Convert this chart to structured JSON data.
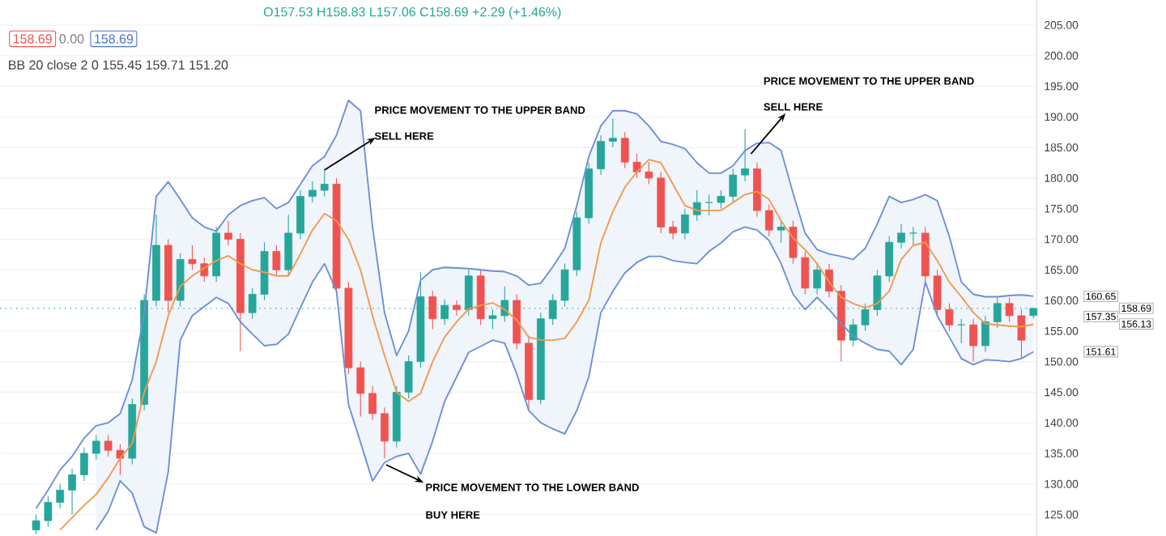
{
  "chart_data": {
    "type": "candlestick",
    "categories": [
      null,
      null,
      null,
      null,
      null,
      null,
      null,
      null,
      null,
      null,
      null,
      null,
      null,
      null,
      null,
      null,
      null,
      null,
      null,
      null,
      null,
      null,
      null,
      null,
      null,
      null,
      null,
      null,
      null,
      null,
      null,
      null,
      null,
      null,
      null,
      null,
      null,
      null,
      null,
      null,
      null,
      null,
      null,
      null,
      null,
      null,
      null,
      null,
      null,
      null,
      null,
      null,
      null,
      null,
      null,
      null,
      null,
      null,
      null,
      null,
      null,
      null,
      null,
      null,
      null,
      null,
      null,
      null,
      null,
      null,
      null,
      null,
      null,
      null,
      null,
      null,
      null,
      null,
      null,
      null,
      null,
      null,
      null,
      null
    ],
    "ohlc": [
      [
        122.5,
        125,
        121.8,
        124
      ],
      [
        124,
        128,
        123,
        127
      ],
      [
        127,
        130,
        126,
        129
      ],
      [
        129,
        132.5,
        125,
        131.5
      ],
      [
        131.5,
        136,
        130.5,
        135
      ],
      [
        135,
        138,
        134,
        137
      ],
      [
        137,
        138,
        134.5,
        135.5
      ],
      [
        135.5,
        136.5,
        131.5,
        134.2
      ],
      [
        134.2,
        144,
        133.2,
        143
      ],
      [
        143,
        161,
        142,
        160
      ],
      [
        160,
        174,
        159,
        169
      ],
      [
        169,
        170,
        158,
        160
      ],
      [
        160,
        167.7,
        159,
        166.7
      ],
      [
        166.7,
        169,
        165,
        166
      ],
      [
        166,
        167,
        163,
        164
      ],
      [
        164,
        172,
        163,
        171
      ],
      [
        171,
        173,
        169,
        170
      ],
      [
        170,
        171,
        151.7,
        158
      ],
      [
        158,
        162,
        157,
        161
      ],
      [
        161,
        169.5,
        160,
        168
      ],
      [
        168,
        169,
        164,
        165
      ],
      [
        165,
        174,
        164,
        171
      ],
      [
        171,
        178,
        170,
        177
      ],
      [
        177,
        179.5,
        176,
        178
      ],
      [
        178,
        181.3,
        177,
        179
      ],
      [
        179,
        180,
        161,
        162
      ],
      [
        162,
        163,
        148,
        149
      ],
      [
        149,
        150,
        141,
        144.8
      ],
      [
        144.8,
        146,
        140.5,
        141.5
      ],
      [
        141.5,
        142.5,
        134.2,
        137
      ],
      [
        137,
        146,
        136,
        145
      ],
      [
        145,
        151,
        144,
        150
      ],
      [
        150,
        164.6,
        149,
        160.6
      ],
      [
        160.6,
        161.6,
        155.3,
        157
      ],
      [
        157,
        160.2,
        156,
        159.2
      ],
      [
        159.2,
        160,
        157.5,
        158.5
      ],
      [
        158.5,
        165,
        157.5,
        164
      ],
      [
        164,
        165,
        156,
        157
      ],
      [
        157,
        158.5,
        155.3,
        157.5
      ],
      [
        157.5,
        162.3,
        156.5,
        160
      ],
      [
        160,
        161,
        152,
        153
      ],
      [
        153,
        154,
        142,
        143.8
      ],
      [
        143.8,
        158,
        143,
        157
      ],
      [
        157,
        161,
        156,
        160
      ],
      [
        160,
        166,
        159,
        165
      ],
      [
        165,
        174.5,
        164,
        173.5
      ],
      [
        173.5,
        182.5,
        172.5,
        181.5
      ],
      [
        181.5,
        187,
        180.5,
        186
      ],
      [
        186,
        189.7,
        185,
        186.5
      ],
      [
        186.5,
        187.5,
        181.6,
        182.6
      ],
      [
        182.6,
        184,
        180,
        181
      ],
      [
        181,
        182.6,
        179,
        180
      ],
      [
        180,
        181,
        171,
        172
      ],
      [
        172,
        173,
        170,
        171
      ],
      [
        171,
        175,
        170,
        174
      ],
      [
        174,
        178,
        173,
        176
      ],
      [
        176,
        177.3,
        173.9,
        176
      ],
      [
        176,
        178,
        175,
        177
      ],
      [
        177,
        181.5,
        176,
        180.5
      ],
      [
        180.5,
        188,
        179.5,
        181.5
      ],
      [
        181.5,
        182.5,
        173.7,
        174.7
      ],
      [
        174.7,
        175.7,
        170.5,
        171.5
      ],
      [
        171.5,
        173,
        169.4,
        172
      ],
      [
        172,
        173,
        166,
        167
      ],
      [
        167,
        168,
        161,
        162
      ],
      [
        162,
        166,
        161,
        165
      ],
      [
        165,
        166,
        160.5,
        161.5
      ],
      [
        161.5,
        162.5,
        150,
        153.5
      ],
      [
        153.5,
        157,
        152.5,
        156
      ],
      [
        156,
        159.5,
        155,
        158.5
      ],
      [
        158.5,
        165,
        157.5,
        164
      ],
      [
        164,
        170.5,
        163,
        169.5
      ],
      [
        169.5,
        172.5,
        168.5,
        171
      ],
      [
        171,
        172,
        169,
        171
      ],
      [
        171,
        172,
        163,
        164
      ],
      [
        164,
        165,
        157.5,
        158.5
      ],
      [
        158.5,
        159.5,
        155,
        156
      ],
      [
        156,
        157,
        153,
        156
      ],
      [
        156,
        157,
        150,
        152.6
      ],
      [
        152.6,
        157.5,
        151.6,
        156.5
      ],
      [
        156.5,
        160.5,
        155.5,
        159.5
      ],
      [
        159.5,
        160.5,
        156.5,
        157.5
      ],
      [
        157.5,
        158.5,
        150.5,
        153.5
      ],
      [
        157.53,
        158.83,
        157.06,
        158.69
      ]
    ],
    "colors": [
      "#26a69a",
      "#26a69a",
      "#26a69a",
      "#26a69a",
      "#26a69a",
      "#26a69a",
      "#ef5350",
      "#ef5350",
      "#26a69a",
      "#26a69a",
      "#26a69a",
      "#ef5350",
      "#26a69a",
      "#ef5350",
      "#ef5350",
      "#26a69a",
      "#ef5350",
      "#ef5350",
      "#26a69a",
      "#26a69a",
      "#ef5350",
      "#26a69a",
      "#26a69a",
      "#26a69a",
      "#26a69a",
      "#ef5350",
      "#ef5350",
      "#ef5350",
      "#ef5350",
      "#ef5350",
      "#26a69a",
      "#26a69a",
      "#26a69a",
      "#ef5350",
      "#26a69a",
      "#ef5350",
      "#26a69a",
      "#ef5350",
      "#26a69a",
      "#26a69a",
      "#ef5350",
      "#ef5350",
      "#26a69a",
      "#26a69a",
      "#26a69a",
      "#26a69a",
      "#26a69a",
      "#26a69a",
      "#26a69a",
      "#ef5350",
      "#ef5350",
      "#ef5350",
      "#ef5350",
      "#ef5350",
      "#26a69a",
      "#26a69a",
      "#26a69a",
      "#26a69a",
      "#26a69a",
      "#26a69a",
      "#ef5350",
      "#ef5350",
      "#26a69a",
      "#ef5350",
      "#ef5350",
      "#26a69a",
      "#ef5350",
      "#ef5350",
      "#26a69a",
      "#26a69a",
      "#26a69a",
      "#26a69a",
      "#26a69a",
      "#26a69a",
      "#ef5350",
      "#ef5350",
      "#ef5350",
      "#26a69a",
      "#ef5350",
      "#26a69a",
      "#26a69a",
      "#ef5350",
      "#ef5350",
      "#26a69a"
    ],
    "series": [
      {
        "type": "line",
        "color": "#6b8fd6",
        "values": [
          126,
          129,
          132.3,
          134.5,
          137.5,
          139.5,
          140,
          141.5,
          147,
          158,
          177,
          179.4,
          176.5,
          173.5,
          172,
          171.3,
          174,
          175.5,
          176.3,
          176.8,
          175,
          176,
          179,
          182,
          183.5,
          187,
          192.7,
          191,
          172,
          158,
          151,
          155,
          163.3,
          165,
          165.4,
          165.3,
          165.2,
          165,
          164.8,
          164.7,
          164,
          162.5,
          162.8,
          165.5,
          168.5,
          175.5,
          183.5,
          188.5,
          191,
          191,
          190.5,
          188.5,
          186,
          185.5,
          184.8,
          182.5,
          180.8,
          180.8,
          182,
          184.5,
          185.7,
          185.8,
          184.5,
          177.5,
          171,
          168.3,
          167.6,
          167.2,
          166.7,
          168.5,
          172.5,
          177,
          176,
          176.5,
          177.3,
          176.3,
          170.5,
          163,
          161,
          160.6,
          160.6,
          160.8,
          160.9,
          160.7
        ]
      },
      {
        "type": "line",
        "color": "#f2994a",
        "lower": [
          null,
          null,
          null,
          null,
          null,
          122.5,
          125.5,
          130.5,
          128.5,
          123,
          122,
          132,
          153.5,
          157.5,
          159,
          160.5,
          159.5,
          156.5,
          154.5,
          152.6,
          152.8,
          154.5,
          158.8,
          163,
          166,
          161.5,
          143,
          136.8,
          130.5,
          133.5,
          134.5,
          135,
          131.6,
          137,
          143.5,
          147.5,
          151.5,
          152.5,
          153.5,
          153,
          148,
          142,
          140,
          139,
          138.2,
          142,
          147.5,
          158,
          161.5,
          164.5,
          166.2,
          167.2,
          167.2,
          166.5,
          166.2,
          166,
          168,
          169.4,
          171.2,
          172,
          171.5,
          169.8,
          166,
          161,
          158.5,
          160.5,
          158.5,
          156.2,
          154.2,
          153,
          152,
          151.7,
          149.5,
          152,
          163,
          157.5,
          154,
          150.5,
          149.5,
          150.3,
          150.2,
          150,
          150.5,
          151.6
        ],
        "upper": [
          null,
          null,
          null,
          null,
          null,
          139.5,
          140,
          141.5,
          147,
          158,
          177,
          179.4,
          176.5,
          173.5,
          172,
          171.3,
          174,
          175.5,
          176.3,
          176.8,
          175,
          176,
          179,
          182,
          183.5,
          187,
          192.7,
          191,
          172,
          158,
          151,
          155,
          163.3,
          165,
          165.4,
          165.3,
          165.2,
          165,
          164.8,
          164.7,
          164,
          162.5,
          162.8,
          165.5,
          168.5,
          175.5,
          183.5,
          188.5,
          191,
          191,
          190.5,
          188.5,
          186,
          185.5,
          184.8,
          182.5,
          180.8,
          180.8,
          182,
          184.5,
          185.7,
          185.8,
          184.5,
          177.5,
          171,
          168.3,
          167.6,
          167.2,
          166.7,
          168.5,
          172.5,
          177,
          176,
          176.5,
          177.3,
          176.3,
          170.5,
          163,
          161,
          160.6,
          160.6,
          160.8,
          160.9,
          160.7
        ],
        "values": [
          null,
          null,
          122.5,
          124.5,
          126.5,
          128.3,
          131,
          134.2,
          136.6,
          145,
          150,
          157.5,
          162.3,
          164,
          165.3,
          166.5,
          167.3,
          166,
          165,
          164.6,
          164,
          164,
          167.6,
          171.5,
          174.2,
          173,
          170,
          165,
          157.5,
          151,
          145,
          143.5,
          144.8,
          150,
          154,
          156.5,
          158.6,
          159.2,
          159.6,
          158.5,
          156.8,
          154,
          153.5,
          153.5,
          153.8,
          156.5,
          160,
          169.4,
          174.5,
          178.5,
          181,
          183,
          182.5,
          179,
          175.5,
          174.7,
          174.7,
          174.7,
          176,
          177.3,
          177.8,
          176.5,
          173,
          170.2,
          168.3,
          166,
          163,
          160.5,
          159.5,
          158.8,
          159.5,
          161.5,
          166.7,
          169,
          169.5,
          166.5,
          163,
          160.6,
          158,
          156.2,
          156,
          155.8,
          155.7,
          156.1
        ]
      },
      {
        "type": "line",
        "color": "#6b8fd6",
        "values": [
          null,
          null,
          null,
          null,
          null,
          122.5,
          125.5,
          130.5,
          128.5,
          123,
          122,
          132,
          153.5,
          157.5,
          159,
          160.5,
          159.5,
          156.5,
          154.5,
          152.6,
          152.8,
          154.5,
          158.8,
          163,
          166,
          161.5,
          143,
          136.8,
          130.5,
          133.5,
          134.5,
          135,
          131.6,
          137,
          143.5,
          147.5,
          151.5,
          152.5,
          153.5,
          153,
          148,
          142,
          140,
          139,
          138.2,
          142,
          147.5,
          158,
          161.5,
          164.5,
          166.2,
          167.2,
          167.2,
          166.5,
          166.2,
          166,
          168,
          169.4,
          171.2,
          172,
          171.5,
          169.8,
          166,
          161,
          158.5,
          160.5,
          158.5,
          156.2,
          154.2,
          153,
          152,
          151.7,
          149.5,
          152,
          163,
          157.5,
          154,
          150.5,
          149.5,
          150.3,
          150.2,
          150,
          150.5,
          151.6
        ]
      }
    ],
    "ylim": [
      121.5,
      209.1
    ],
    "yticks": [
      {
        "value": 125,
        "label": "125.00"
      },
      {
        "value": 130,
        "label": "130.00"
      },
      {
        "value": 135,
        "label": "135.00"
      },
      {
        "value": 140,
        "label": "140.00"
      },
      {
        "value": 145,
        "label": "145.00"
      },
      {
        "value": 150,
        "label": "150.00"
      },
      {
        "value": 155,
        "label": "155.00"
      },
      {
        "value": 160,
        "label": "160.00"
      },
      {
        "value": 165,
        "label": "165.00"
      },
      {
        "value": 170,
        "label": "170.00"
      },
      {
        "value": 175,
        "label": "175.00"
      },
      {
        "value": 180,
        "label": "180.00"
      },
      {
        "value": 185,
        "label": "185.00"
      },
      {
        "value": 190,
        "label": "190.00"
      },
      {
        "value": 195,
        "label": "195.00"
      },
      {
        "value": 200,
        "label": "200.00"
      },
      {
        "value": 205,
        "label": "205.00"
      }
    ],
    "grid": "y",
    "tick_labels": "y",
    "ref_lines": [
      {
        "axis": "y",
        "value": 158.69,
        "color": "#26a69a",
        "line_style": "dotted"
      }
    ],
    "annotations": [
      "PRICE MOVEMENT TO THE UPPER BAND",
      "SELL HERE",
      "PRICE MOVEMENT TO THE UPPER BAND",
      "SELL HERE",
      "PRICE MOVEMENT TO THE LOWER BAND",
      "BUY HERE",
      "O157.53 H158.83 L157.06 C158.69 +2.29 (+1.46%)",
      "158.69",
      "0.00",
      "158.69",
      "BB 20 close 2 0 155.45 159.71 151.20",
      "160.65",
      "158.69",
      "157.35",
      "156.13",
      "151.61"
    ]
  }
}
